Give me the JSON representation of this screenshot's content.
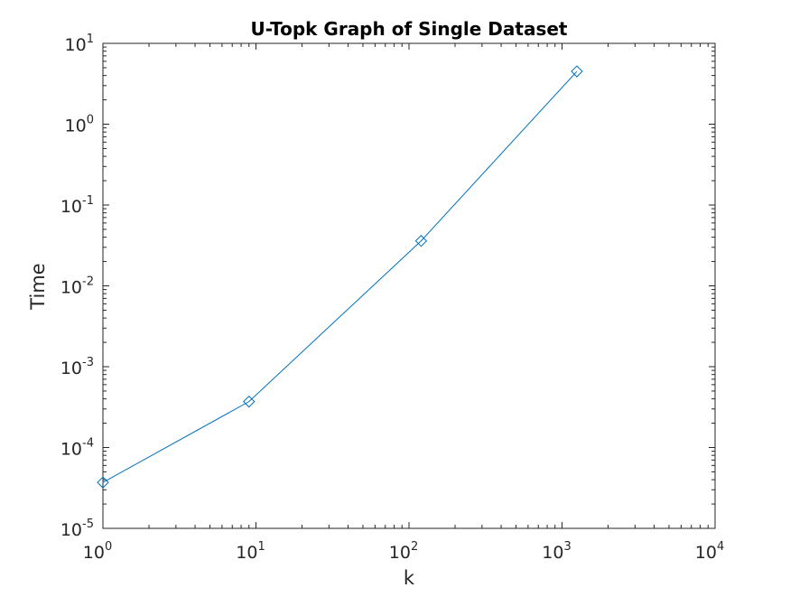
{
  "chart_data": {
    "type": "line",
    "title": "U-Topk Graph of Single Dataset",
    "xlabel": "k",
    "ylabel": "Time",
    "xscale": "log",
    "yscale": "log",
    "xlim": [
      1,
      10000
    ],
    "ylim": [
      1e-05,
      10
    ],
    "grid": false,
    "legend": "none",
    "x_ticks": [
      {
        "value": 1,
        "base": "10",
        "exp": "0"
      },
      {
        "value": 10,
        "base": "10",
        "exp": "1"
      },
      {
        "value": 100,
        "base": "10",
        "exp": "2"
      },
      {
        "value": 1000,
        "base": "10",
        "exp": "3"
      },
      {
        "value": 10000,
        "base": "10",
        "exp": "4"
      }
    ],
    "y_ticks": [
      {
        "value": 1e-05,
        "base": "10",
        "exp": "-5"
      },
      {
        "value": 0.0001,
        "base": "10",
        "exp": "-4"
      },
      {
        "value": 0.001,
        "base": "10",
        "exp": "-3"
      },
      {
        "value": 0.01,
        "base": "10",
        "exp": "-2"
      },
      {
        "value": 0.1,
        "base": "10",
        "exp": "-1"
      },
      {
        "value": 1,
        "base": "10",
        "exp": "0"
      },
      {
        "value": 10,
        "base": "10",
        "exp": "1"
      }
    ],
    "series": [
      {
        "marker": "diamond",
        "color": "#0072BD",
        "x": [
          1,
          9,
          120,
          1250
        ],
        "y": [
          3.7e-05,
          0.00037,
          0.036,
          4.5
        ]
      }
    ]
  }
}
